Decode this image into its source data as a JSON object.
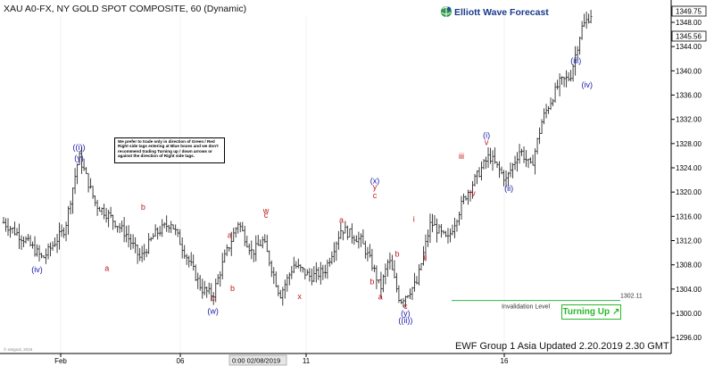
{
  "header": {
    "title": "XAU A0-FX, NY GOLD SPOT COMPOSITE, 60 (Dynamic)",
    "brand": "Elliott Wave Forecast"
  },
  "disclaimer": "We prefer to trade only in direction of Green / Red Right side tags entering at Blue boxes and we don't recommend trading Turning up / down arrows or against the direction of Right side tags.",
  "turning_button": "Turning Up",
  "footer": "EWF Group 1 Asia Updated 2.20.2019 2.30 GMT",
  "watermark": "© eSignal, 2019",
  "colors": {
    "price": "#333333",
    "blue_label": "#1a1aa6",
    "red_label": "#c0181a",
    "invalidation": "#39b54a",
    "brand_green": "#2e9a47"
  },
  "chart_data": {
    "type": "ohlc",
    "title": "XAU A0-FX, NY GOLD SPOT COMPOSITE, 60 (Dynamic)",
    "ylim": [
      1294,
      1351
    ],
    "y_ticks": [
      1296,
      1300,
      1304,
      1308,
      1312,
      1316,
      1320,
      1324,
      1328,
      1332,
      1336,
      1340,
      1344,
      1348
    ],
    "x_ticks": [
      "Feb",
      "06",
      "11",
      "16"
    ],
    "cursor_label": "0:00 02/08/2019",
    "last_price": "1349.75",
    "marker_price": "1345.56",
    "invalidation": {
      "label": "Invalidation Level",
      "value": "1302.11"
    },
    "price_path": [
      [
        0,
        1315
      ],
      [
        8,
        1312
      ],
      [
        14,
        1309
      ],
      [
        22,
        1314
      ],
      [
        27,
        1326
      ],
      [
        33,
        1318
      ],
      [
        38,
        1316
      ],
      [
        44,
        1313
      ],
      [
        49,
        1309
      ],
      [
        54,
        1313
      ],
      [
        60,
        1315
      ],
      [
        66,
        1309
      ],
      [
        71,
        1304
      ],
      [
        75,
        1303
      ],
      [
        79,
        1309
      ],
      [
        84,
        1315
      ],
      [
        89,
        1310
      ],
      [
        93,
        1312
      ],
      [
        99,
        1303
      ],
      [
        104,
        1308
      ],
      [
        110,
        1306
      ],
      [
        115,
        1307
      ],
      [
        121,
        1314
      ],
      [
        128,
        1312
      ],
      [
        132,
        1308
      ],
      [
        135,
        1304
      ],
      [
        138,
        1309
      ],
      [
        142,
        1302
      ],
      [
        148,
        1305
      ],
      [
        153,
        1315
      ],
      [
        159,
        1312
      ],
      [
        165,
        1319
      ],
      [
        170,
        1323
      ],
      [
        174,
        1326
      ],
      [
        180,
        1322
      ],
      [
        185,
        1327
      ],
      [
        189,
        1324
      ],
      [
        193,
        1332
      ],
      [
        199,
        1338
      ],
      [
        203,
        1339
      ],
      [
        207,
        1347
      ],
      [
        211,
        1349.75
      ]
    ],
    "wave_labels": [
      {
        "text": "((i))",
        "t": 27,
        "v": 1327.4,
        "color": "blue"
      },
      {
        "text": "(y)",
        "t": 27,
        "v": 1325.6,
        "color": "blue"
      },
      {
        "text": "(iv)",
        "t": 12,
        "v": 1307.2,
        "color": "blue"
      },
      {
        "text": "a",
        "t": 37,
        "v": 1307.4,
        "color": "red"
      },
      {
        "text": "b",
        "t": 50,
        "v": 1317.5,
        "color": "red"
      },
      {
        "text": "c",
        "t": 75,
        "v": 1302.5,
        "color": "red"
      },
      {
        "text": "(w)",
        "t": 75,
        "v": 1300.4,
        "color": "blue"
      },
      {
        "text": "a",
        "t": 81,
        "v": 1312.9,
        "color": "red"
      },
      {
        "text": "b",
        "t": 82,
        "v": 1304.1,
        "color": "red"
      },
      {
        "text": "w",
        "t": 94,
        "v": 1316.9,
        "color": "red"
      },
      {
        "text": "c",
        "t": 94,
        "v": 1316.2,
        "color": "red"
      },
      {
        "text": "x",
        "t": 106,
        "v": 1302.8,
        "color": "red"
      },
      {
        "text": "a",
        "t": 121,
        "v": 1315.4,
        "color": "red"
      },
      {
        "text": "(x)",
        "t": 133,
        "v": 1321.9,
        "color": "blue"
      },
      {
        "text": "y",
        "t": 133,
        "v": 1320.8,
        "color": "red"
      },
      {
        "text": "c",
        "t": 133,
        "v": 1319.4,
        "color": "red"
      },
      {
        "text": "b",
        "t": 132,
        "v": 1305.2,
        "color": "red"
      },
      {
        "text": "a",
        "t": 135,
        "v": 1302.7,
        "color": "red"
      },
      {
        "text": "b",
        "t": 141,
        "v": 1309.8,
        "color": "red"
      },
      {
        "text": "i",
        "t": 147,
        "v": 1315.5,
        "color": "red"
      },
      {
        "text": "ii",
        "t": 151,
        "v": 1309.2,
        "color": "red"
      },
      {
        "text": "c",
        "t": 144,
        "v": 1301.2,
        "color": "red"
      },
      {
        "text": "(y)",
        "t": 144,
        "v": 1300.0,
        "color": "blue"
      },
      {
        "text": "((ii))",
        "t": 144,
        "v": 1298.8,
        "color": "blue"
      },
      {
        "text": "iii",
        "t": 164,
        "v": 1325.9,
        "color": "red"
      },
      {
        "text": "iv",
        "t": 168,
        "v": 1319.8,
        "color": "red"
      },
      {
        "text": "(i)",
        "t": 173,
        "v": 1329.4,
        "color": "blue"
      },
      {
        "text": "v",
        "t": 173,
        "v": 1328.2,
        "color": "red"
      },
      {
        "text": "(ii)",
        "t": 181,
        "v": 1320.6,
        "color": "blue"
      },
      {
        "text": "(iii)",
        "t": 205,
        "v": 1341.7,
        "color": "blue"
      },
      {
        "text": "(iv)",
        "t": 209,
        "v": 1337.7,
        "color": "blue"
      }
    ]
  }
}
